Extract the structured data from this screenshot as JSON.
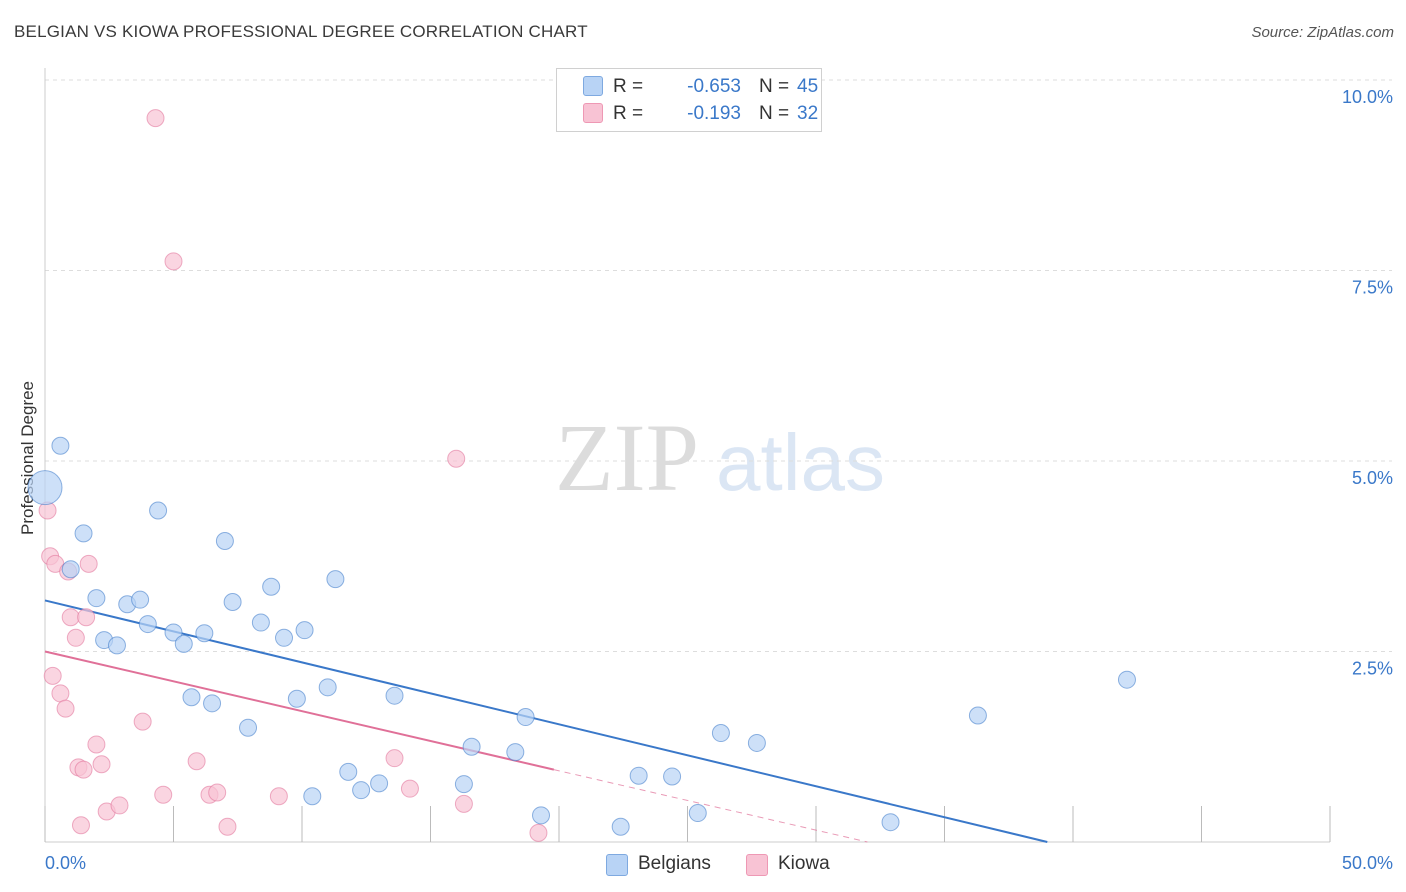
{
  "chart_data": {
    "type": "scatter",
    "title": "BELGIAN VS KIOWA PROFESSIONAL DEGREE CORRELATION CHART",
    "source": "Source: ZipAtlas.com",
    "ylabel": "Professional Degree",
    "xlabel": "",
    "x_tick_labels": [
      "0.0%",
      "50.0%"
    ],
    "y_tick_labels": [
      "10.0%",
      "7.5%",
      "5.0%",
      "2.5%"
    ],
    "y_tick_values": [
      10.0,
      7.5,
      5.0,
      2.5
    ],
    "xlim": [
      0,
      50
    ],
    "ylim": [
      0,
      10
    ],
    "watermark": "ZIPatlas",
    "colors": {
      "blue": "#3a78c9",
      "blue_fill": "#b8d3f5",
      "pink": "#e07098",
      "pink_fill": "#f8c3d4",
      "label": "#3a78c9"
    },
    "legend": [
      {
        "r_label": "R =",
        "r_value": "-0.653",
        "n_label": "N =",
        "n_value": "45"
      },
      {
        "r_label": "R =",
        "r_value": "-0.193",
        "n_label": "N =",
        "n_value": "32"
      }
    ],
    "series": [
      {
        "name": "Belgians",
        "color": "#3a78c9",
        "fill": "#b8d3f5",
        "trend": {
          "x0": 0,
          "y0": 3.17,
          "x1": 39.0,
          "y1": 0.0,
          "dashed_to": null
        },
        "points": [
          {
            "x": 0.0,
            "y": 4.65,
            "big": true
          },
          {
            "x": 0.6,
            "y": 5.2
          },
          {
            "x": 1.5,
            "y": 4.05
          },
          {
            "x": 1.0,
            "y": 3.58
          },
          {
            "x": 2.0,
            "y": 3.2
          },
          {
            "x": 2.3,
            "y": 2.65
          },
          {
            "x": 2.8,
            "y": 2.58
          },
          {
            "x": 3.2,
            "y": 3.12
          },
          {
            "x": 3.7,
            "y": 3.18
          },
          {
            "x": 4.0,
            "y": 2.86
          },
          {
            "x": 4.4,
            "y": 4.35
          },
          {
            "x": 5.0,
            "y": 2.75
          },
          {
            "x": 5.4,
            "y": 2.6
          },
          {
            "x": 5.7,
            "y": 1.9
          },
          {
            "x": 6.2,
            "y": 2.74
          },
          {
            "x": 6.5,
            "y": 1.82
          },
          {
            "x": 7.0,
            "y": 3.95
          },
          {
            "x": 7.3,
            "y": 3.15
          },
          {
            "x": 7.9,
            "y": 1.5
          },
          {
            "x": 8.4,
            "y": 2.88
          },
          {
            "x": 8.8,
            "y": 3.35
          },
          {
            "x": 9.3,
            "y": 2.68
          },
          {
            "x": 9.8,
            "y": 1.88
          },
          {
            "x": 10.1,
            "y": 2.78
          },
          {
            "x": 10.4,
            "y": 0.6
          },
          {
            "x": 11.0,
            "y": 2.03
          },
          {
            "x": 11.3,
            "y": 3.45
          },
          {
            "x": 11.8,
            "y": 0.92
          },
          {
            "x": 12.3,
            "y": 0.68
          },
          {
            "x": 13.0,
            "y": 0.77
          },
          {
            "x": 13.6,
            "y": 1.92
          },
          {
            "x": 16.3,
            "y": 0.76
          },
          {
            "x": 16.6,
            "y": 1.25
          },
          {
            "x": 18.3,
            "y": 1.18
          },
          {
            "x": 18.7,
            "y": 1.64
          },
          {
            "x": 19.3,
            "y": 0.35
          },
          {
            "x": 22.4,
            "y": 0.2
          },
          {
            "x": 23.1,
            "y": 0.87
          },
          {
            "x": 24.4,
            "y": 0.86
          },
          {
            "x": 25.4,
            "y": 0.38
          },
          {
            "x": 26.3,
            "y": 1.43
          },
          {
            "x": 27.7,
            "y": 1.3
          },
          {
            "x": 32.9,
            "y": 0.26
          },
          {
            "x": 36.3,
            "y": 1.66
          },
          {
            "x": 42.1,
            "y": 2.13
          }
        ]
      },
      {
        "name": "Kiowa",
        "color": "#e07098",
        "fill": "#f8c3d4",
        "trend": {
          "x0": 0,
          "y0": 2.5,
          "x1": 19.8,
          "y1": 0.95,
          "dashed_to": {
            "x": 32.0,
            "y": 0.0
          }
        },
        "points": [
          {
            "x": 0.1,
            "y": 4.35
          },
          {
            "x": 0.2,
            "y": 3.75
          },
          {
            "x": 0.4,
            "y": 3.65
          },
          {
            "x": 0.9,
            "y": 3.55
          },
          {
            "x": 1.7,
            "y": 3.65
          },
          {
            "x": 1.0,
            "y": 2.95
          },
          {
            "x": 1.6,
            "y": 2.95
          },
          {
            "x": 1.2,
            "y": 2.68
          },
          {
            "x": 0.3,
            "y": 2.18
          },
          {
            "x": 0.6,
            "y": 1.95
          },
          {
            "x": 0.8,
            "y": 1.75
          },
          {
            "x": 2.0,
            "y": 1.28
          },
          {
            "x": 1.3,
            "y": 0.98
          },
          {
            "x": 1.5,
            "y": 0.95
          },
          {
            "x": 2.2,
            "y": 1.02
          },
          {
            "x": 2.4,
            "y": 0.4
          },
          {
            "x": 2.9,
            "y": 0.48
          },
          {
            "x": 1.4,
            "y": 0.22
          },
          {
            "x": 3.8,
            "y": 1.58
          },
          {
            "x": 4.6,
            "y": 0.62
          },
          {
            "x": 5.9,
            "y": 1.06
          },
          {
            "x": 6.4,
            "y": 0.62
          },
          {
            "x": 6.7,
            "y": 0.65
          },
          {
            "x": 7.1,
            "y": 0.2
          },
          {
            "x": 9.1,
            "y": 0.6
          },
          {
            "x": 4.3,
            "y": 9.5
          },
          {
            "x": 5.0,
            "y": 7.62
          },
          {
            "x": 16.0,
            "y": 5.03
          },
          {
            "x": 13.6,
            "y": 1.1
          },
          {
            "x": 14.2,
            "y": 0.7
          },
          {
            "x": 16.3,
            "y": 0.5
          },
          {
            "x": 19.2,
            "y": 0.12
          }
        ]
      }
    ]
  }
}
